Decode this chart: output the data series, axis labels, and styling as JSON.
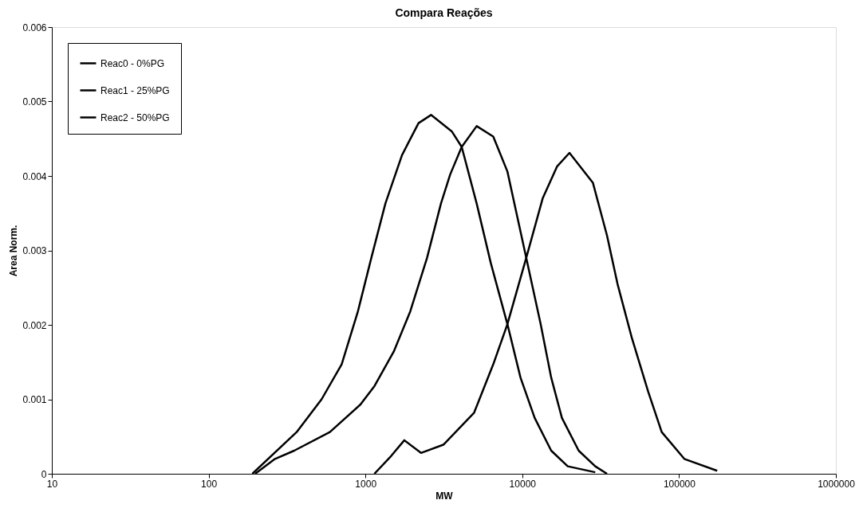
{
  "chart_data": {
    "type": "line",
    "title": "Compara Reações",
    "xlabel": "MW",
    "ylabel": "Area Norm.",
    "log": "x",
    "xlim": [
      10,
      1000000
    ],
    "xticks": [
      10,
      100,
      1000,
      10000,
      100000,
      1000000
    ],
    "ylim": [
      0,
      0.006
    ],
    "yticks": [
      0,
      0.001,
      0.002,
      0.003,
      0.004,
      0.005,
      0.006
    ],
    "grid": false,
    "legend": "top left",
    "marker": "none",
    "line_style": "solid",
    "series": [
      {
        "name": "Reac0 - 0%PG",
        "color": "#000000",
        "x": [
          190,
          364,
          525,
          705,
          895,
          1090,
          1340,
          1710,
          2180,
          2620,
          3550,
          4110,
          5120,
          6300,
          8040,
          9750,
          12000,
          15300,
          19500,
          29200
        ],
        "values": [
          0,
          0.00056,
          0.001,
          0.00147,
          0.00218,
          0.0029,
          0.00363,
          0.00428,
          0.00471,
          0.00482,
          0.0046,
          0.00439,
          0.00363,
          0.00283,
          0.00201,
          0.00129,
          0.00075,
          0.00031,
          0.0001,
          2e-05
        ]
      },
      {
        "name": "Reac1 - 25%PG",
        "color": "#000000",
        "x": [
          198,
          265,
          351,
          593,
          929,
          1143,
          1514,
          1930,
          2470,
          3030,
          3470,
          4110,
          5120,
          6530,
          8040,
          10600,
          13100,
          15300,
          17900,
          22900,
          29200,
          34700
        ],
        "values": [
          0,
          0.0002,
          0.00031,
          0.00056,
          0.00093,
          0.00118,
          0.00164,
          0.00218,
          0.0029,
          0.00363,
          0.00402,
          0.00439,
          0.00467,
          0.00453,
          0.00406,
          0.0029,
          0.00201,
          0.00129,
          0.00075,
          0.00031,
          0.0001,
          0
        ]
      },
      {
        "name": "Reac2 - 50%PG",
        "color": "#000000",
        "x": [
          1140,
          1460,
          1770,
          2260,
          3140,
          4930,
          6530,
          8040,
          10600,
          13500,
          16700,
          20000,
          28200,
          34700,
          40500,
          49900,
          63600,
          77500,
          108000,
          175000
        ],
        "values": [
          0,
          0.00024,
          0.00045,
          0.00028,
          0.00039,
          0.00082,
          0.00147,
          0.00201,
          0.0029,
          0.0037,
          0.00413,
          0.00431,
          0.00391,
          0.0032,
          0.00255,
          0.00183,
          0.0011,
          0.00056,
          0.0002,
          4e-05
        ]
      }
    ]
  }
}
